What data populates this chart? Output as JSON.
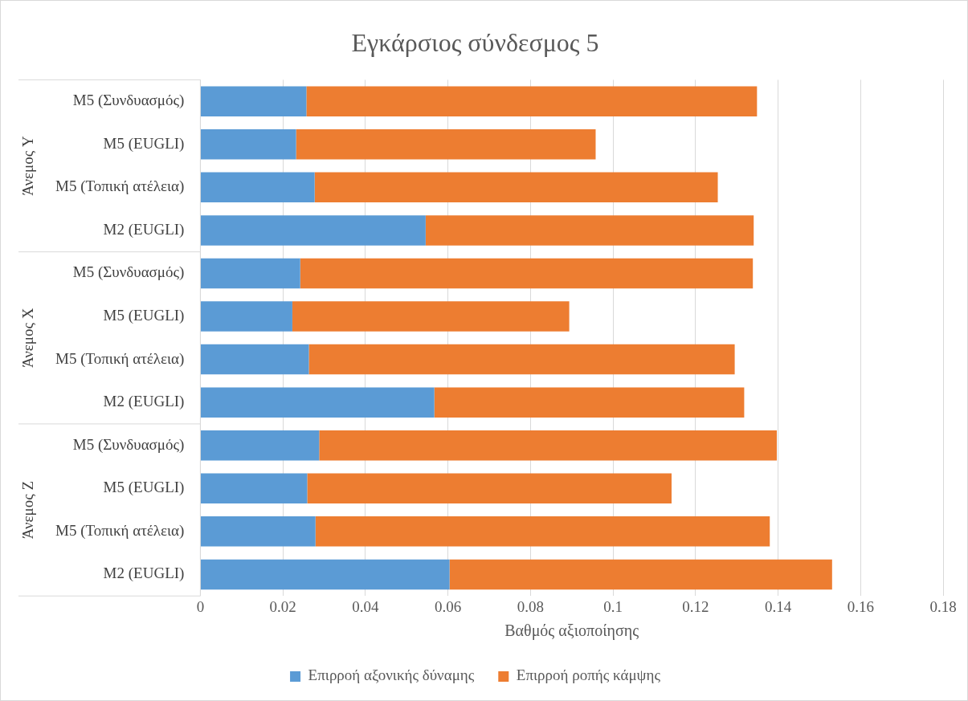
{
  "chart_data": {
    "type": "bar",
    "orientation": "horizontal",
    "stacked": true,
    "title": "Εγκάρσιος σύνδεσμος 5",
    "xlabel": "Βαθμός αξιοποίησης",
    "categories": [
      "M5 (Συνδυασμός)",
      "M5 (EUGLI)",
      "M5 (Τοπική ατέλεια)",
      "M2 (EUGLI)",
      "M5 (Συνδυασμός)",
      "M5 (EUGLI)",
      "M5 (Τοπική ατέλεια)",
      "M2 (EUGLI)",
      "M5 (Συνδυασμός)",
      "M5 (EUGLI)",
      "M5 (Τοπική ατέλεια)",
      "M2 (EUGLI)"
    ],
    "series": [
      {
        "name": "Επιρροή αξονικής δύναμης",
        "color": "#5b9bd5",
        "values": [
          0.0257,
          0.0232,
          0.0277,
          0.0546,
          0.0242,
          0.0223,
          0.0263,
          0.0567,
          0.0288,
          0.0259,
          0.0279,
          0.0604
        ]
      },
      {
        "name": "Επιρροή ροπής κάμψης",
        "color": "#ed7d31",
        "values": [
          0.1092,
          0.0726,
          0.0977,
          0.0795,
          0.1097,
          0.0671,
          0.1032,
          0.0751,
          0.1109,
          0.0883,
          0.1101,
          0.0927
        ]
      }
    ],
    "annotations": [
      "Άνεμος Y",
      "Άνεμος X",
      "Άνεμος Z"
    ],
    "xlim": [
      0,
      0.18
    ],
    "xticks": [
      0,
      0.02,
      0.04,
      0.06,
      0.08,
      0.1,
      0.12,
      0.14,
      0.16,
      0.18
    ],
    "grid": "x",
    "legend": "bottom"
  }
}
